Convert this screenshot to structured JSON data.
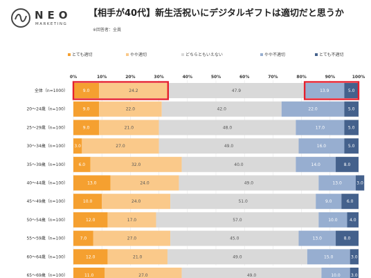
{
  "logo": {
    "brand": "NEO",
    "sub": "MARKETING"
  },
  "title": "【相手が40代】新生活祝いにデジタルギフトは適切だと思うか",
  "respondents": "※回答者：全員",
  "chart_data": {
    "type": "bar",
    "orientation": "horizontal",
    "stacked": "100%",
    "x_ticks": [
      "0%",
      "10%",
      "20%",
      "30%",
      "40%",
      "50%",
      "60%",
      "70%",
      "80%",
      "90%",
      "100%"
    ],
    "xlim": [
      0,
      100
    ],
    "grid": true,
    "legend_position": "top",
    "categories": [
      "全体（n=1000）",
      "20～24歳（n=100）",
      "25～29歳（n=100）",
      "30～34歳（n=100）",
      "35～39歳（n=100）",
      "40～44歳（n=100）",
      "45～49歳（n=100）",
      "50～54歳（n=100）",
      "55～59歳（n=100）",
      "60～64歳（n=100）",
      "65～69歳（n=100）"
    ],
    "series": [
      {
        "name": "とても適切",
        "color": "#f5a030",
        "label_color": "#ffffff",
        "values": [
          9.0,
          9.0,
          9.0,
          3.0,
          6.0,
          13.0,
          10.0,
          12.0,
          7.0,
          12.0,
          11.0
        ]
      },
      {
        "name": "やや適切",
        "color": "#fac98a",
        "label_color": "#555555",
        "values": [
          24.2,
          22.0,
          21.0,
          27.0,
          32.0,
          24.0,
          24.0,
          17.0,
          27.0,
          21.0,
          27.0
        ]
      },
      {
        "name": "どちらともいえない",
        "color": "#d9d9d9",
        "label_color": "#555555",
        "values": [
          47.9,
          42.0,
          48.0,
          49.0,
          40.0,
          49.0,
          51.0,
          57.0,
          45.0,
          49.0,
          49.0
        ]
      },
      {
        "name": "やや不適切",
        "color": "#97aed0",
        "label_color": "#ffffff",
        "values": [
          13.9,
          22.0,
          17.0,
          16.0,
          14.0,
          13.0,
          9.0,
          10.0,
          13.0,
          15.0,
          10.0
        ]
      },
      {
        "name": "とても不適切",
        "color": "#44618c",
        "label_color": "#ffffff",
        "values": [
          5.0,
          5.0,
          5.0,
          5.0,
          8.0,
          3.0,
          6.0,
          4.0,
          8.0,
          3.0,
          3.0
        ]
      }
    ],
    "highlight_color": "#e5202e"
  }
}
